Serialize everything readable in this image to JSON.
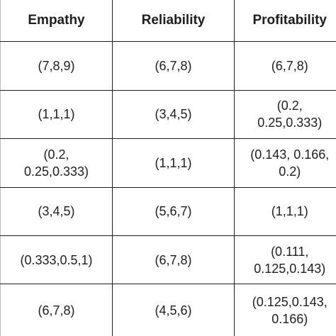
{
  "headers": [
    "Empathy",
    "Reliability",
    "Profitability"
  ],
  "rows": [
    [
      [
        "(7,8,9)"
      ],
      [
        "(6,7,8)"
      ],
      [
        "(6,7,8)"
      ]
    ],
    [
      [
        "(1,1,1)"
      ],
      [
        "(3,4,5)"
      ],
      [
        "(0.2,",
        "0.25,0.333)"
      ]
    ],
    [
      [
        "(0.2,",
        "0.25,0.333)"
      ],
      [
        "(1,1,1)"
      ],
      [
        "(0.143, 0.166,",
        "0.2)"
      ]
    ],
    [
      [
        "(3,4,5)"
      ],
      [
        "(5,6,7)"
      ],
      [
        "(1,1,1)"
      ]
    ],
    [
      [
        "(0.333,0.5,1)"
      ],
      [
        "(6,7,8)"
      ],
      [
        "(0.111,",
        "0.125,0.143)"
      ]
    ],
    [
      [
        "(6,7,8)"
      ],
      [
        "(4,5,6)"
      ],
      [
        "(0.125,0.143,",
        "0.166)"
      ]
    ]
  ]
}
